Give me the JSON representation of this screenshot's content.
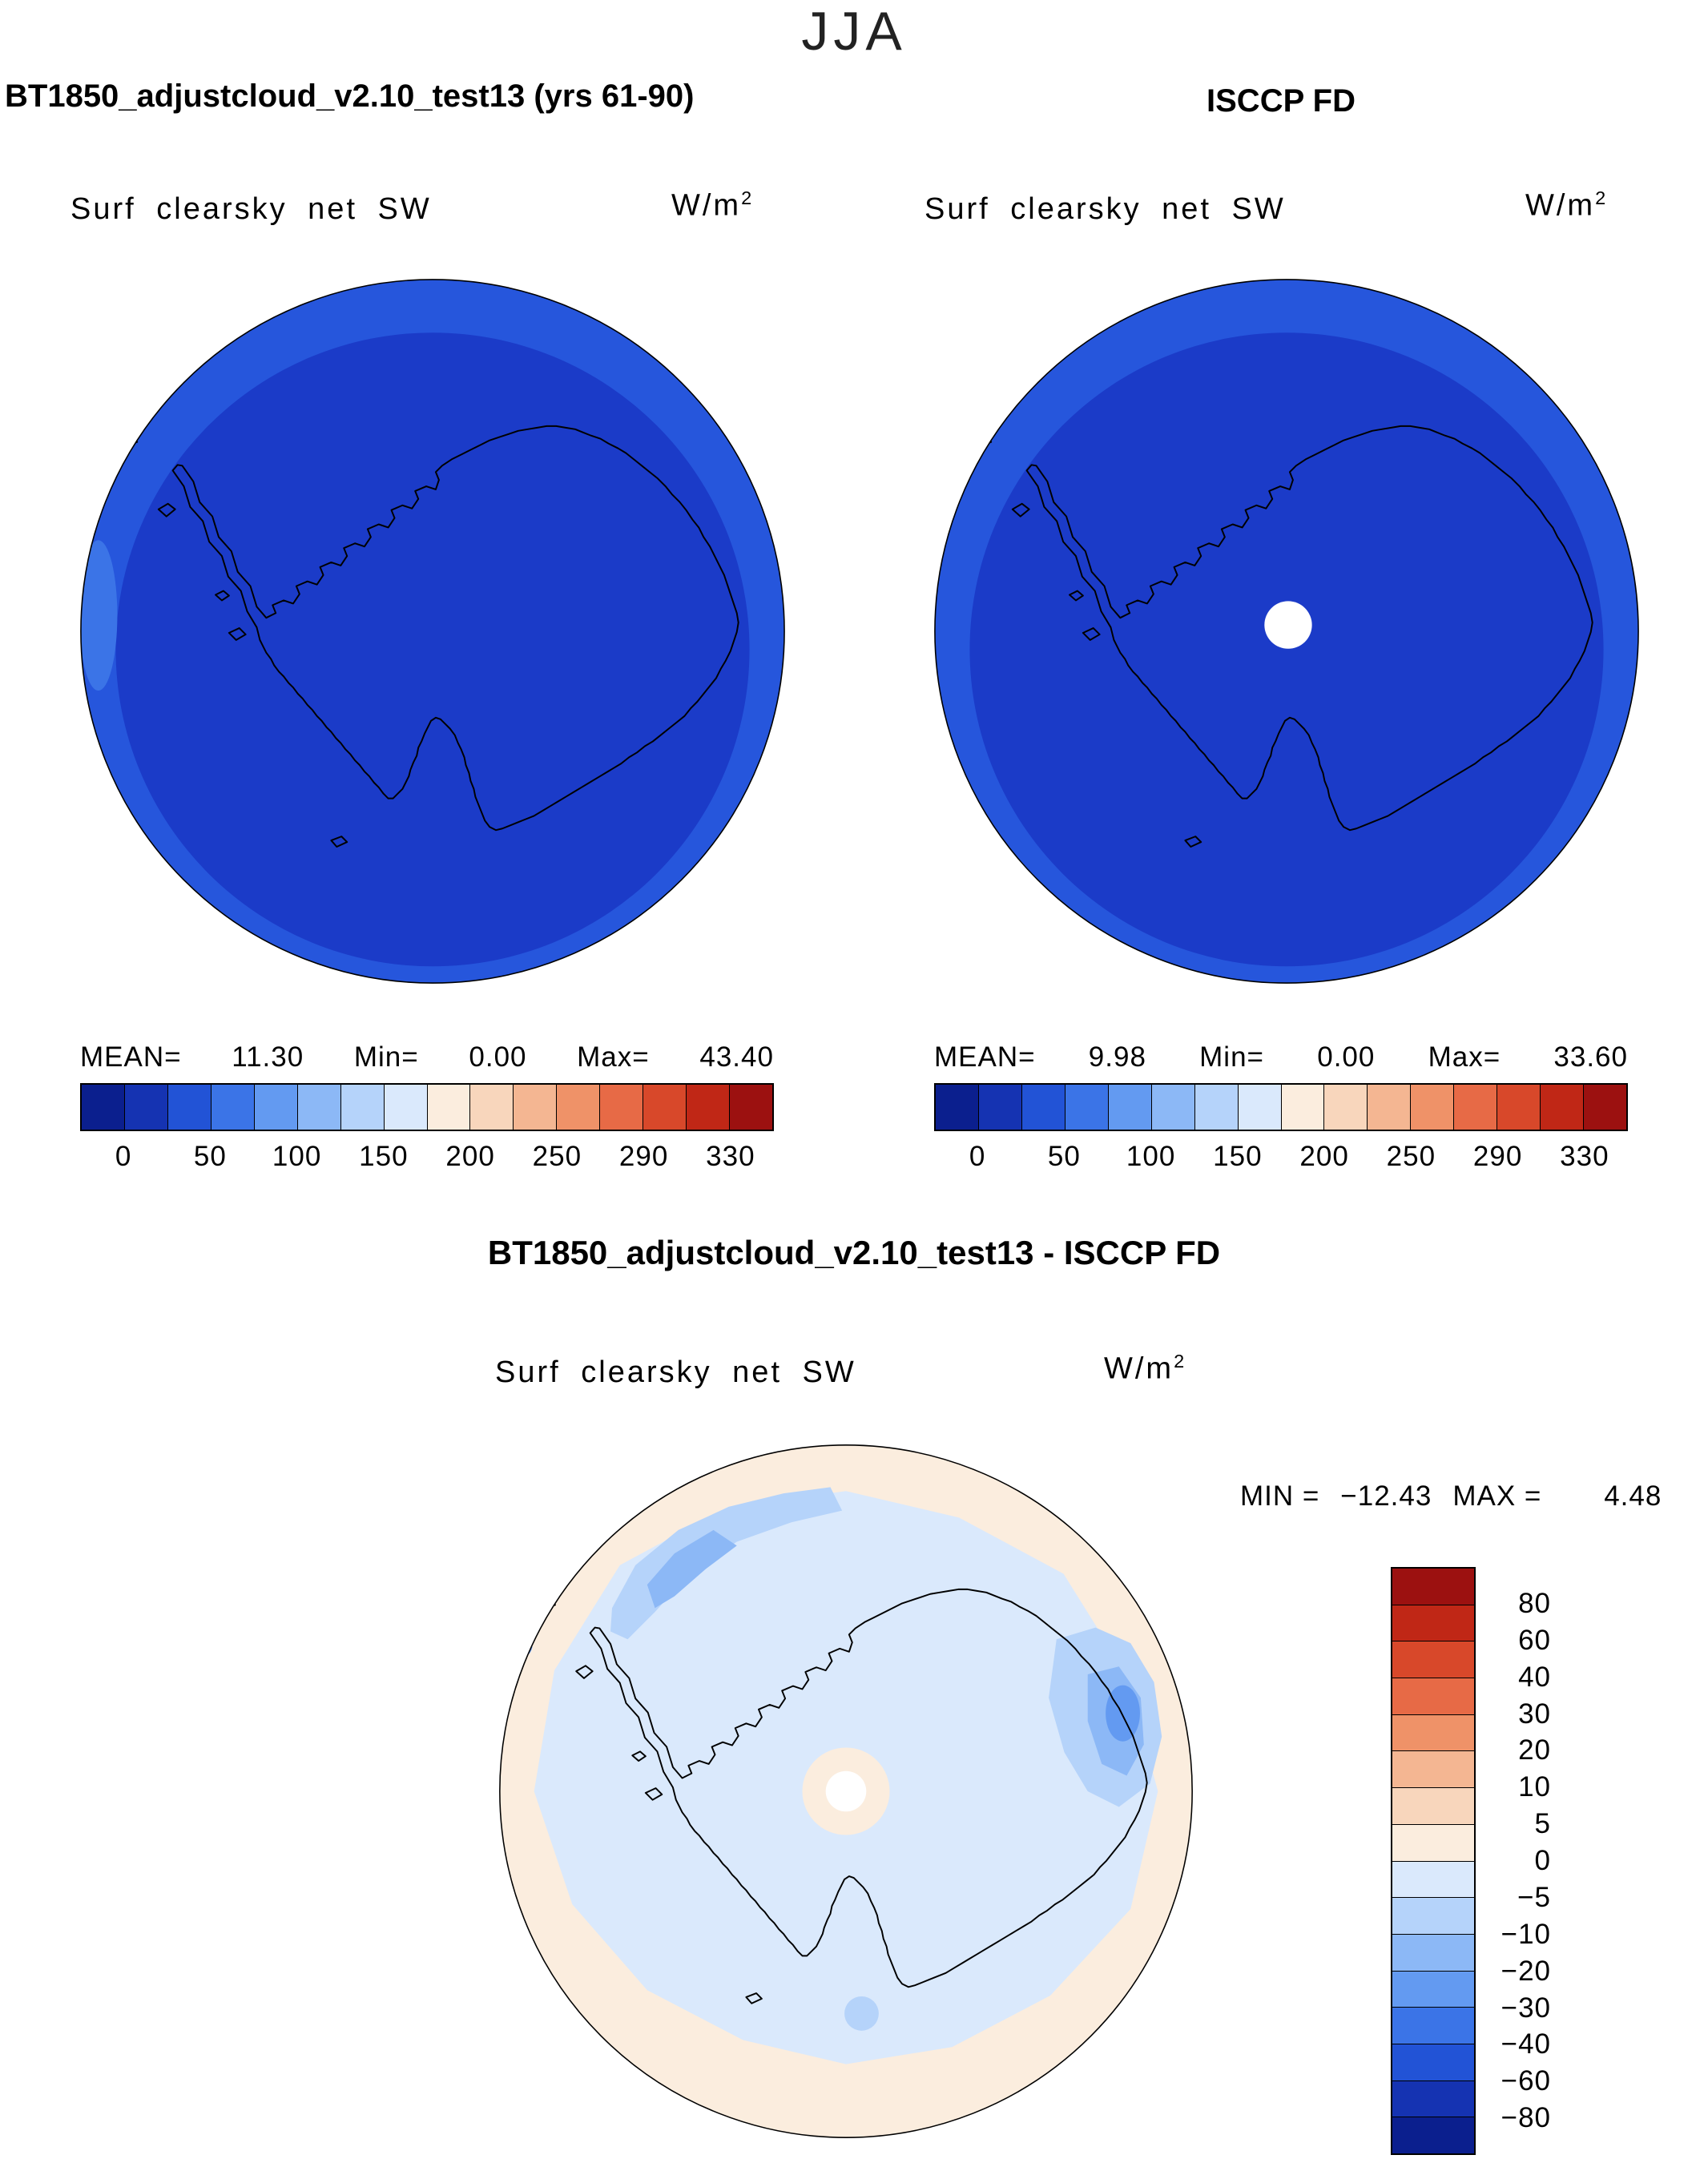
{
  "season_title": "JJA",
  "colors": {
    "rim_blue": "#2656DC",
    "inner_blue": "#1B3BC8",
    "edge_light_blue": "#3B74E7",
    "diff_base_peach": "#FBEDDE",
    "diff_light_blue": "#DAE9FC",
    "diff_mid_blue": "#B5D3FA",
    "diff_deep_blue": "#8CB8F6",
    "diff_deepest_blue": "#639AF1",
    "center_cream": "#FBEDDE",
    "pole_hole_white": "#FFFFFF",
    "coastline_black": "#000000"
  },
  "sw_palette": [
    "#0B1F8E",
    "#1533B2",
    "#2253D6",
    "#3B74E7",
    "#639AF1",
    "#8CB8F6",
    "#B5D3FA",
    "#DAE9FC",
    "#FBEDDE",
    "#F8D6BC",
    "#F4B692",
    "#EF9268",
    "#E76A46",
    "#D8482A",
    "#C02716",
    "#9C1110"
  ],
  "diff_palette": [
    "#9C1110",
    "#C02716",
    "#D8482A",
    "#E76A46",
    "#EF9268",
    "#F4B692",
    "#F8D6BC",
    "#FBEDDE",
    "#DAE9FC",
    "#B5D3FA",
    "#8CB8F6",
    "#639AF1",
    "#3B74E7",
    "#2253D6",
    "#1533B2",
    "#0B1F8E"
  ],
  "panels": [
    {
      "title": "BT1850_adjustcloud_v2.10_test13 (yrs 61-90)",
      "field_label": "Surf clearsky net SW",
      "units_base": "W/m",
      "units_exp": "2",
      "stats": {
        "mean_label": "MEAN=",
        "mean": "11.30",
        "min_label": "Min=",
        "min": "0.00",
        "max_label": "Max=",
        "max": "43.40"
      },
      "ticks": [
        "0",
        "50",
        "100",
        "150",
        "200",
        "250",
        "290",
        "330"
      ]
    },
    {
      "title": "ISCCP FD",
      "field_label": "Surf clearsky net SW",
      "units_base": "W/m",
      "units_exp": "2",
      "stats": {
        "mean_label": "MEAN=",
        "mean": "9.98",
        "min_label": "Min=",
        "min": "0.00",
        "max_label": "Max=",
        "max": "33.60"
      },
      "ticks": [
        "0",
        "50",
        "100",
        "150",
        "200",
        "250",
        "290",
        "330"
      ]
    }
  ],
  "diff_panel": {
    "title": "BT1850_adjustcloud_v2.10_test13 - ISCCP FD",
    "field_label": "Surf clearsky net SW",
    "units_base": "W/m",
    "units_exp": "2",
    "min_label": "MIN =",
    "min_value": "−12.43",
    "max_label": "MAX =",
    "max_value": "4.48",
    "cbar_labels": [
      "80",
      "60",
      "40",
      "30",
      "20",
      "10",
      "5",
      "0",
      "−5",
      "−10",
      "−20",
      "−30",
      "−40",
      "−60",
      "−80"
    ]
  },
  "chart_data": [
    {
      "type": "heatmap",
      "title": "BT1850_adjustcloud_v2.10_test13 (yrs 61-90)",
      "season": "JJA",
      "variable": "Surf clearsky net SW",
      "units": "W/m^2",
      "projection": "south polar stereographic (Antarctica)",
      "mean": 11.3,
      "min": 0.0,
      "max": 43.4,
      "colorbar_levels": [
        0,
        25,
        50,
        75,
        100,
        125,
        150,
        175,
        200,
        225,
        250,
        270,
        290,
        310,
        330
      ],
      "colorbar_ticks": [
        0,
        50,
        100,
        150,
        200,
        250,
        290,
        330
      ],
      "legend_position": "bottom"
    },
    {
      "type": "heatmap",
      "title": "ISCCP FD",
      "season": "JJA",
      "variable": "Surf clearsky net SW",
      "units": "W/m^2",
      "projection": "south polar stereographic (Antarctica)",
      "mean": 9.98,
      "min": 0.0,
      "max": 33.6,
      "colorbar_levels": [
        0,
        25,
        50,
        75,
        100,
        125,
        150,
        175,
        200,
        225,
        250,
        270,
        290,
        310,
        330
      ],
      "colorbar_ticks": [
        0,
        50,
        100,
        150,
        200,
        250,
        290,
        330
      ],
      "legend_position": "bottom",
      "notes": "white circle of missing data at the pole"
    },
    {
      "type": "heatmap",
      "title": "BT1850_adjustcloud_v2.10_test13 - ISCCP FD",
      "season": "JJA",
      "variable": "Surf clearsky net SW difference",
      "units": "W/m^2",
      "projection": "south polar stereographic (Antarctica)",
      "min": -12.43,
      "max": 4.48,
      "colorbar_levels": [
        -80,
        -60,
        -40,
        -30,
        -20,
        -10,
        -5,
        0,
        5,
        10,
        20,
        30,
        40,
        60,
        80
      ],
      "legend_position": "right"
    }
  ]
}
